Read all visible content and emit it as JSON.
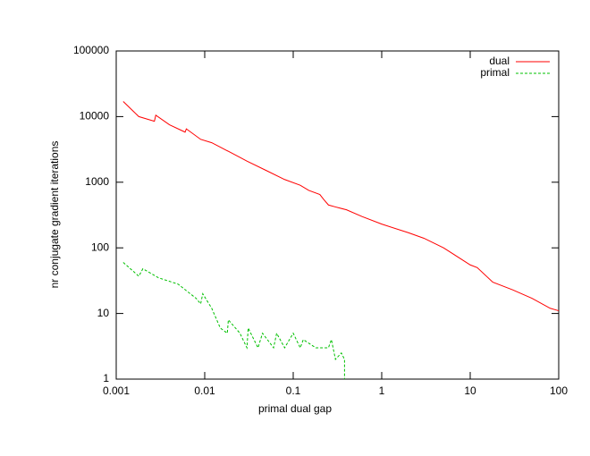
{
  "chart_data": {
    "type": "line",
    "xlabel": "primal dual gap",
    "ylabel": "nr conjugate gradient iterations",
    "xscale": "log",
    "yscale": "log",
    "xlim": [
      0.001,
      100
    ],
    "ylim": [
      1,
      100000
    ],
    "xticks": [
      0.001,
      0.01,
      0.1,
      1,
      10,
      100
    ],
    "yticks": [
      1,
      10,
      100,
      1000,
      10000,
      100000
    ],
    "legend": "top-right",
    "series": [
      {
        "name": "dual",
        "color": "#ff0000",
        "dash": false,
        "x": [
          0.0012,
          0.0018,
          0.0027,
          0.0028,
          0.004,
          0.006,
          0.0062,
          0.009,
          0.012,
          0.02,
          0.03,
          0.05,
          0.08,
          0.12,
          0.15,
          0.2,
          0.22,
          0.25,
          0.3,
          0.4,
          0.6,
          1,
          2,
          3,
          5,
          10,
          12,
          18,
          30,
          50,
          80,
          100
        ],
        "values": [
          17000,
          10000,
          8500,
          10500,
          7500,
          5800,
          6500,
          4500,
          4000,
          2800,
          2100,
          1500,
          1100,
          900,
          750,
          650,
          550,
          450,
          420,
          380,
          300,
          230,
          170,
          140,
          100,
          55,
          50,
          30,
          23,
          17,
          12,
          11
        ]
      },
      {
        "name": "primal",
        "color": "#00c000",
        "dash": true,
        "x": [
          0.0012,
          0.0018,
          0.002,
          0.003,
          0.005,
          0.008,
          0.009,
          0.0095,
          0.012,
          0.015,
          0.018,
          0.0185,
          0.025,
          0.03,
          0.031,
          0.04,
          0.045,
          0.06,
          0.065,
          0.08,
          0.1,
          0.12,
          0.13,
          0.18,
          0.25,
          0.27,
          0.3,
          0.35,
          0.38,
          0.38
        ],
        "values": [
          60,
          37,
          48,
          35,
          28,
          17,
          14,
          20,
          12,
          6,
          5,
          8,
          5,
          3,
          6,
          3,
          5,
          3,
          5,
          3,
          5,
          3,
          4,
          3,
          3,
          4,
          2,
          2.5,
          2,
          1
        ]
      }
    ]
  }
}
